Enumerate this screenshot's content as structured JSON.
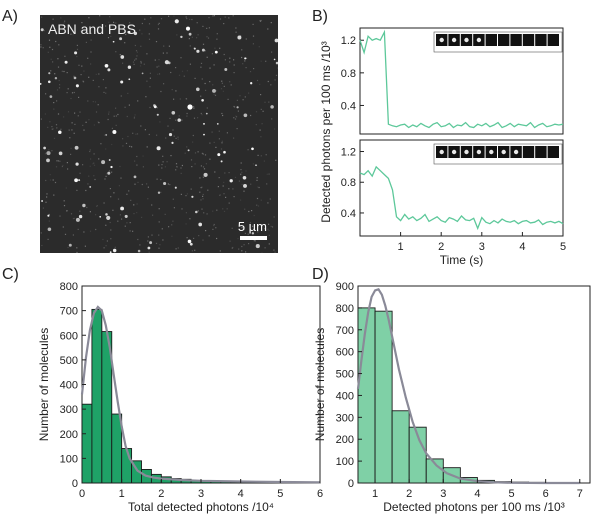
{
  "panel_a": {
    "letter": "A)",
    "label": "ABN and PBS",
    "scalebar_label": "5 µm"
  },
  "panel_b": {
    "letter": "B)"
  },
  "panel_c": {
    "letter": "C)"
  },
  "panel_d": {
    "letter": "D)"
  },
  "colors": {
    "trace": "#5dc89a",
    "bar_c": "#1fa267",
    "bar_d": "#7fd0a6",
    "fit": "#8a8a98",
    "micro_bg": "#2b2b2b"
  },
  "chart_data": [
    {
      "panel": "B",
      "type": "line",
      "ylabel": "Detected photons per 100 ms /10³",
      "xlabel": "Time (s)",
      "x_ticks": [
        "1",
        "2",
        "3",
        "4",
        "5"
      ],
      "xlim": [
        0,
        5
      ],
      "subplots": [
        {
          "ylim": [
            0.05,
            1.35
          ],
          "y_ticks": [
            "0.4",
            "0.8",
            "1.2"
          ],
          "inset_frames": 10,
          "inset_bright_frames": 4,
          "x": [
            0,
            0.1,
            0.2,
            0.3,
            0.4,
            0.5,
            0.6,
            0.7,
            0.8,
            0.9,
            1.0,
            1.1,
            1.2,
            1.3,
            1.4,
            1.5,
            1.6,
            1.7,
            1.8,
            1.9,
            2.0,
            2.1,
            2.2,
            2.3,
            2.4,
            2.5,
            2.6,
            2.7,
            2.8,
            2.9,
            3.0,
            3.1,
            3.2,
            3.3,
            3.4,
            3.5,
            3.6,
            3.7,
            3.8,
            3.9,
            4.0,
            4.1,
            4.2,
            4.3,
            4.4,
            4.5,
            4.6,
            4.7,
            4.8,
            4.9,
            5.0
          ],
          "y": [
            1.2,
            1.05,
            1.25,
            1.2,
            1.22,
            1.2,
            1.3,
            0.17,
            0.15,
            0.14,
            0.16,
            0.17,
            0.13,
            0.16,
            0.14,
            0.18,
            0.15,
            0.13,
            0.17,
            0.19,
            0.14,
            0.15,
            0.18,
            0.13,
            0.16,
            0.15,
            0.19,
            0.14,
            0.13,
            0.17,
            0.15,
            0.18,
            0.14,
            0.16,
            0.19,
            0.13,
            0.15,
            0.18,
            0.14,
            0.17,
            0.16,
            0.15,
            0.19,
            0.13,
            0.16,
            0.18,
            0.14,
            0.15,
            0.17,
            0.16,
            0.17
          ]
        },
        {
          "ylim": [
            0.1,
            1.35
          ],
          "y_ticks": [
            "0.4",
            "0.8",
            "1.2"
          ],
          "inset_frames": 10,
          "inset_bright_frames": 7,
          "x": [
            0,
            0.1,
            0.2,
            0.3,
            0.4,
            0.5,
            0.6,
            0.7,
            0.8,
            0.9,
            1.0,
            1.1,
            1.2,
            1.3,
            1.4,
            1.5,
            1.6,
            1.7,
            1.8,
            1.9,
            2.0,
            2.1,
            2.2,
            2.3,
            2.4,
            2.5,
            2.6,
            2.7,
            2.8,
            2.9,
            3.0,
            3.1,
            3.2,
            3.3,
            3.4,
            3.5,
            3.6,
            3.7,
            3.8,
            3.9,
            4.0,
            4.1,
            4.2,
            4.3,
            4.4,
            4.5,
            4.6,
            4.7,
            4.8,
            4.9,
            5.0
          ],
          "y": [
            0.92,
            0.9,
            0.95,
            0.88,
            1.0,
            0.95,
            0.9,
            0.85,
            0.7,
            0.35,
            0.3,
            0.38,
            0.32,
            0.35,
            0.3,
            0.33,
            0.38,
            0.29,
            0.32,
            0.35,
            0.3,
            0.28,
            0.34,
            0.32,
            0.29,
            0.36,
            0.31,
            0.3,
            0.33,
            0.2,
            0.34,
            0.28,
            0.26,
            0.3,
            0.27,
            0.32,
            0.29,
            0.28,
            0.3,
            0.26,
            0.29,
            0.3,
            0.27,
            0.28,
            0.31,
            0.25,
            0.28,
            0.29,
            0.27,
            0.29,
            0.26
          ]
        }
      ]
    },
    {
      "panel": "C",
      "type": "bar",
      "xlabel": "Total detected photons /10⁴",
      "ylabel": "Number of molecules",
      "xlim": [
        0,
        6
      ],
      "ylim": [
        0,
        800
      ],
      "x_ticks": [
        "0",
        "1",
        "2",
        "3",
        "4",
        "5",
        "6"
      ],
      "y_ticks": [
        "0",
        "100",
        "200",
        "300",
        "400",
        "500",
        "600",
        "700",
        "800"
      ],
      "bin_width": 0.25,
      "bin_starts": [
        0,
        0.25,
        0.5,
        0.75,
        1.0,
        1.25,
        1.5,
        1.75,
        2.0,
        2.25,
        2.5,
        2.75,
        3.0,
        3.25,
        3.5,
        3.75,
        4.0,
        4.25,
        4.5,
        4.75,
        5.0,
        5.25,
        5.5,
        5.75
      ],
      "values": [
        320,
        705,
        615,
        280,
        140,
        90,
        55,
        35,
        25,
        18,
        15,
        10,
        10,
        8,
        6,
        5,
        5,
        4,
        4,
        3,
        3,
        2,
        2,
        2
      ],
      "fit": {
        "x": [
          0,
          0.1,
          0.2,
          0.3,
          0.4,
          0.5,
          0.6,
          0.7,
          0.8,
          0.9,
          1.0,
          1.1,
          1.2,
          1.4,
          1.6,
          1.8,
          2.0,
          2.5,
          3.0,
          4.0,
          5.0,
          6.0
        ],
        "y": [
          360,
          510,
          620,
          690,
          715,
          700,
          640,
          550,
          440,
          330,
          230,
          150,
          100,
          50,
          30,
          22,
          18,
          12,
          9,
          6,
          4,
          3
        ]
      }
    },
    {
      "panel": "D",
      "type": "bar",
      "xlabel": "Detected photons per 100 ms /10³",
      "ylabel": "Number of molecules",
      "xlim": [
        0.5,
        7.3
      ],
      "ylim": [
        0,
        900
      ],
      "x_ticks": [
        "1",
        "2",
        "3",
        "4",
        "5",
        "6",
        "7"
      ],
      "y_ticks": [
        "0",
        "100",
        "200",
        "300",
        "400",
        "500",
        "600",
        "700",
        "800",
        "900"
      ],
      "bin_width": 0.5,
      "bin_starts": [
        0.5,
        1.0,
        1.5,
        2.0,
        2.5,
        3.0,
        3.5,
        4.0,
        4.5,
        5.0,
        5.5,
        6.0,
        6.5
      ],
      "values": [
        800,
        785,
        330,
        255,
        110,
        70,
        25,
        12,
        6,
        4,
        3,
        2,
        2
      ],
      "fit": {
        "x": [
          0.5,
          0.6,
          0.7,
          0.8,
          0.9,
          1.0,
          1.1,
          1.2,
          1.3,
          1.4,
          1.5,
          1.7,
          1.9,
          2.1,
          2.3,
          2.5,
          2.8,
          3.1,
          3.5,
          4.0,
          4.5,
          5.0,
          6.0,
          7.0
        ],
        "y": [
          430,
          560,
          680,
          780,
          850,
          880,
          885,
          860,
          810,
          745,
          670,
          520,
          390,
          280,
          195,
          135,
          80,
          45,
          20,
          8,
          3,
          1,
          0,
          0
        ]
      }
    }
  ]
}
